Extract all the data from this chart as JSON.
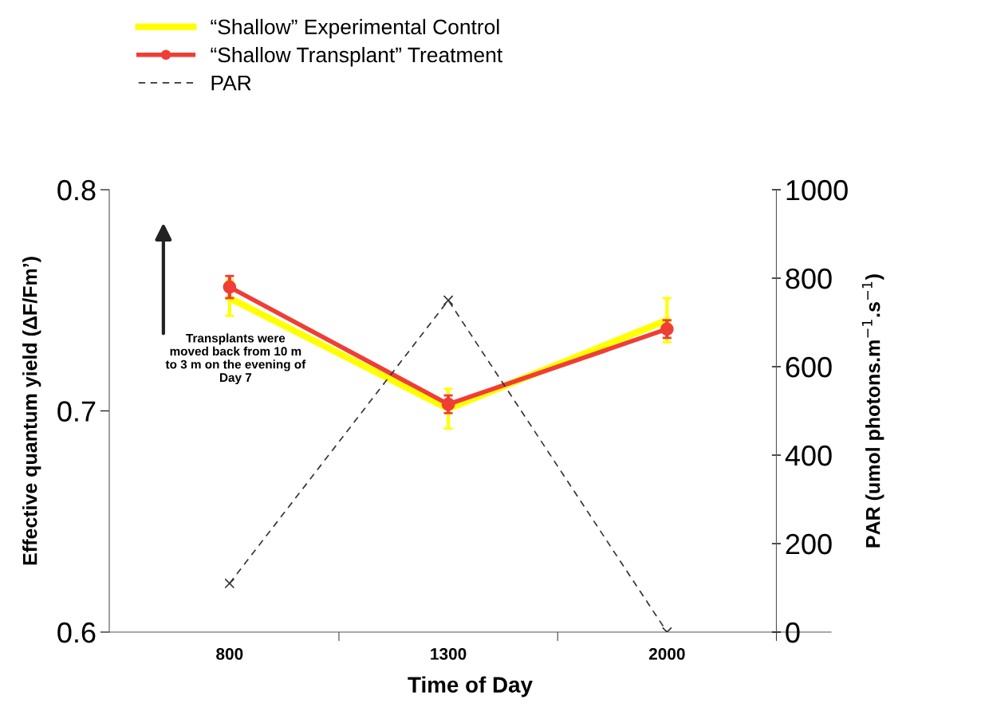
{
  "chart_data": {
    "type": "line",
    "xlabel": "Time of Day",
    "ylabel": "Effective quantum yield (ΔF/Fm’)",
    "y2label": "PAR (umol photons.m$^{−1}$.s$^{−1}$)",
    "categories": [
      "800",
      "1300",
      "2000"
    ],
    "ylim": [
      0.6,
      0.8
    ],
    "yticks": [
      0.6,
      0.7,
      0.8
    ],
    "y2lim": [
      0,
      1000
    ],
    "y2ticks": [
      0,
      200,
      400,
      600,
      800,
      1000
    ],
    "series": [
      {
        "name": "“Shallow” Experimental Control",
        "color": "#ffff00",
        "values": [
          0.751,
          0.701,
          0.741
        ],
        "errors": [
          0.008,
          0.009,
          0.01
        ],
        "marker": "none",
        "line_style": "solid"
      },
      {
        "name": "“Shallow Transplant” Treatment",
        "color": "#ef3e36",
        "values": [
          0.756,
          0.703,
          0.737
        ],
        "errors": [
          0.005,
          0.004,
          0.004
        ],
        "marker": "circle",
        "line_style": "solid"
      },
      {
        "name": "PAR",
        "color": "#333333",
        "values": [
          110,
          750,
          0
        ],
        "axis": "y2",
        "marker": "cross",
        "line_style": "dashed"
      }
    ],
    "annotations": [
      "Transplants were moved back from 10 m to 3 m on the evening of Day 7"
    ],
    "legend": "top left",
    "grid": false
  }
}
